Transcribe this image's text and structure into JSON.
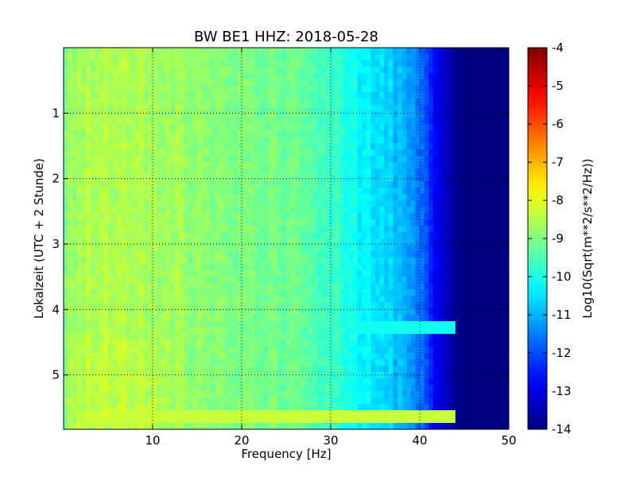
{
  "chart_data": {
    "type": "heatmap",
    "title": "BW BE1 HHZ: 2018-05-28",
    "xlabel": "Frequency [Hz]",
    "ylabel": "Lokalzeit (UTC + 2 Stunde)",
    "colorbar_label": "Log10(Sqrt(m**2/s**2/Hz))",
    "xlim": [
      0,
      50
    ],
    "ylim": [
      0,
      5.83
    ],
    "y_axis_direction": "down",
    "grid": true,
    "x_ticks": [
      10,
      20,
      30,
      40,
      50
    ],
    "y_ticks": [
      1,
      2,
      3,
      4,
      5
    ],
    "colorbar": {
      "colormap": "jet",
      "min": -14,
      "max": -4,
      "ticks": [
        -4,
        -5,
        -6,
        -7,
        -8,
        -9,
        -10,
        -11,
        -12,
        -13,
        -14
      ]
    },
    "frequency_profile": {
      "x": [
        0,
        2,
        5,
        10,
        15,
        20,
        25,
        28,
        30,
        32,
        34,
        36,
        38,
        40,
        41,
        42,
        43,
        44,
        45,
        50
      ],
      "values": [
        -8.9,
        -8.6,
        -8.5,
        -8.6,
        -8.8,
        -9.0,
        -9.2,
        -9.4,
        -9.6,
        -10.0,
        -10.4,
        -10.6,
        -11.0,
        -11.6,
        -12.2,
        -12.9,
        -13.4,
        -13.8,
        -14.0,
        -14.0
      ]
    },
    "annotations": [
      {
        "type": "horizontal-band",
        "time": 4.27,
        "freq_range": [
          10,
          44
        ],
        "value": -10.1
      },
      {
        "type": "horizontal-band",
        "time": 5.65,
        "freq_range": [
          3,
          44
        ],
        "value": -8.3
      }
    ]
  }
}
